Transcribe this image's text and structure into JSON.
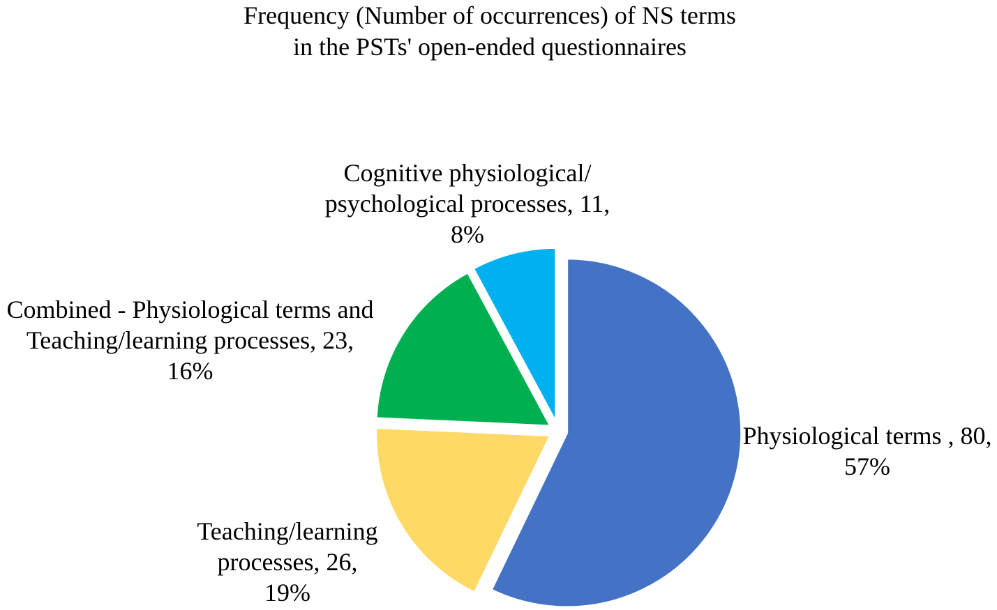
{
  "chart_data": {
    "type": "pie",
    "title_lines": [
      "Frequency (Number of occurrences) of NS terms",
      "in the PSTs' open-ended questionnaires"
    ],
    "slices": [
      {
        "label": "Physiological terms",
        "value": 80,
        "percent": "57%",
        "color": "#4472C4",
        "label_lines": [
          "Physiological terms , 80,",
          "57%"
        ]
      },
      {
        "label": "Teaching/learning processes",
        "value": 26,
        "percent": "19%",
        "color": "#FFD966",
        "label_lines": [
          "Teaching/learning",
          "processes, 26,",
          "19%"
        ]
      },
      {
        "label": "Combined - Physiological terms and Teaching/learning processes",
        "value": 23,
        "percent": "16%",
        "color": "#00B050",
        "label_lines": [
          "Combined - Physiological terms and",
          "Teaching/learning processes, 23,",
          "16%"
        ]
      },
      {
        "label": "Cognitive physiological/ psychological processes",
        "value": 11,
        "percent": "8%",
        "color": "#00B0F0",
        "label_lines": [
          "Cognitive physiological/",
          "psychological processes, 11,",
          "8%"
        ]
      }
    ]
  }
}
